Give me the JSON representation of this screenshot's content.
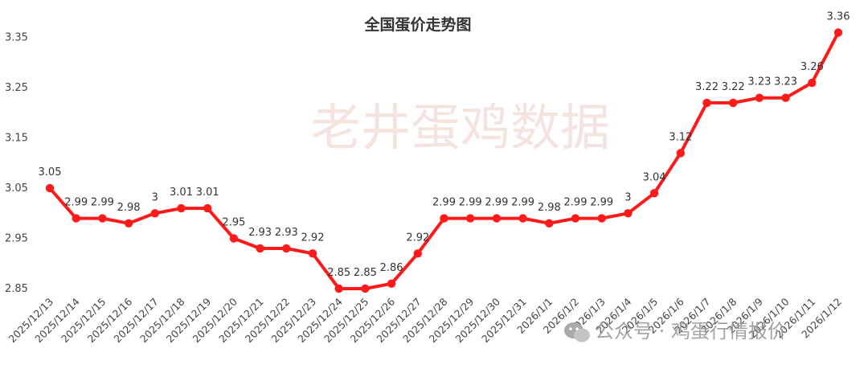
{
  "chart_data": {
    "type": "line",
    "title": "全国蛋价走势图",
    "xlabel": "",
    "ylabel": "",
    "ylim": [
      2.85,
      3.38
    ],
    "yticks": [
      "2.85",
      "2.95",
      "3.05",
      "3.15",
      "3.25",
      "3.35"
    ],
    "grid": false,
    "legend": "none",
    "line_color": "#ff1a1a",
    "categories": [
      "2025/12/13",
      "2025/12/14",
      "2025/12/15",
      "2025/12/16",
      "2025/12/17",
      "2025/12/18",
      "2025/12/19",
      "2025/12/20",
      "2025/12/21",
      "2025/12/22",
      "2025/12/23",
      "2025/12/24",
      "2025/12/25",
      "2025/12/26",
      "2025/12/27",
      "2025/12/28",
      "2025/12/29",
      "2025/12/30",
      "2025/12/31",
      "2026/1/1",
      "2026/1/2",
      "2026/1/3",
      "2026/1/4",
      "2026/1/5",
      "2026/1/6",
      "2026/1/7",
      "2026/1/8",
      "2026/1/9",
      "2026/1/10",
      "2026/1/11",
      "2026/1/12"
    ],
    "values": [
      3.05,
      2.99,
      2.99,
      2.98,
      3.0,
      3.01,
      3.01,
      2.95,
      2.93,
      2.93,
      2.92,
      2.85,
      2.85,
      2.86,
      2.92,
      2.99,
      2.99,
      2.99,
      2.99,
      2.98,
      2.99,
      2.99,
      3.0,
      3.04,
      3.12,
      3.22,
      3.22,
      3.23,
      3.23,
      3.26,
      3.36
    ],
    "data_labels": [
      "3.05",
      "2.99",
      "2.99",
      "2.98",
      "3",
      "3.01",
      "3.01",
      "2.95",
      "2.93",
      "2.93",
      "2.92",
      "2.85",
      "2.85",
      "2.86",
      "2.92",
      "2.99",
      "2.99",
      "2.99",
      "2.99",
      "2.98",
      "2.99",
      "2.99",
      "3",
      "3.04",
      "3.12",
      "3.22",
      "3.22",
      "3.23",
      "3.23",
      "3.26",
      "3.36"
    ]
  },
  "watermark": {
    "center_text": "老井蛋鸡数据",
    "corner_text": "公众号 · 鸡蛋行情报价",
    "corner_icon": "wechat-icon"
  }
}
